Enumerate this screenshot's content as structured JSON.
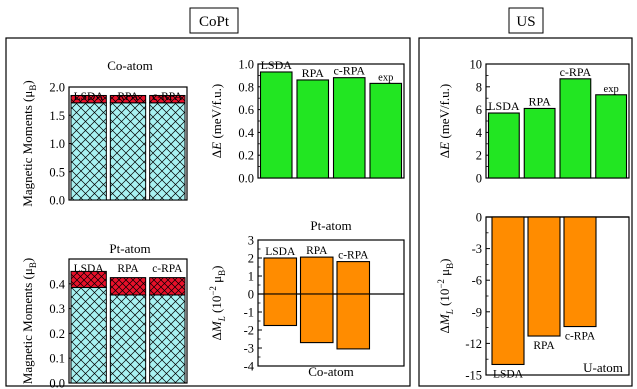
{
  "colors": {
    "cyan": "#a8f2f2",
    "red": "#e8102a",
    "green": "#22e622",
    "orange": "#ff8c00"
  },
  "panels": {
    "copt_label": "CoPt",
    "us_label": "US"
  },
  "chart_data": [
    {
      "id": "copt_mm_co",
      "type": "bar",
      "stacked": true,
      "title": "Co-atom",
      "ylabel": "Magnetic Moments (μB)",
      "ylim": [
        0,
        2.0
      ],
      "yticks": [
        "0.0",
        "0.5",
        "1.0",
        "1.5",
        "2.0"
      ],
      "categories": [
        "LSDA",
        "RPA",
        "c-RPA"
      ],
      "series": [
        {
          "values": [
            1.72,
            1.72,
            1.72
          ]
        },
        {
          "values": [
            0.13,
            0.13,
            0.13
          ]
        }
      ]
    },
    {
      "id": "copt_mm_pt",
      "type": "bar",
      "stacked": true,
      "title": "Pt-atom",
      "ylabel": "Magnetic Moments (μB)",
      "ylim": [
        0,
        0.5
      ],
      "yticks": [
        "0.0",
        "0.1",
        "0.2",
        "0.3",
        "0.4"
      ],
      "categories": [
        "LSDA",
        "RPA",
        "c-RPA"
      ],
      "series": [
        {
          "values": [
            0.385,
            0.355,
            0.355
          ]
        },
        {
          "values": [
            0.065,
            0.07,
            0.07
          ]
        }
      ]
    },
    {
      "id": "copt_de",
      "type": "bar",
      "title": "",
      "ylabel": "ΔE (meV/f.u.)",
      "ylim": [
        0,
        1.0
      ],
      "yticks": [
        "0.0",
        "0.2",
        "0.4",
        "0.6",
        "0.8",
        "1.0"
      ],
      "categories": [
        "LSDA",
        "RPA",
        "c-RPA",
        "exp"
      ],
      "values": [
        0.93,
        0.86,
        0.88,
        0.83
      ]
    },
    {
      "id": "copt_dml",
      "type": "bar",
      "title": "",
      "ylabel": "ΔML (10−2 μB)",
      "ylim": [
        -4,
        3
      ],
      "yticks": [
        "3",
        "2",
        "1",
        "0",
        "-1",
        "-2",
        "-3",
        "-4"
      ],
      "categories": [
        "LSDA",
        "RPA",
        "c-RPA"
      ],
      "series": [
        {
          "name": "Pt-atom",
          "values": [
            2.0,
            2.05,
            1.8
          ]
        },
        {
          "name": "Co-atom",
          "values": [
            -1.75,
            -2.7,
            -3.05
          ]
        }
      ]
    },
    {
      "id": "us_de",
      "type": "bar",
      "title": "",
      "ylabel": "ΔE (meV/f.u.)",
      "ylim": [
        0,
        10
      ],
      "yticks": [
        "0",
        "2",
        "4",
        "6",
        "8",
        "10"
      ],
      "categories": [
        "LSDA",
        "RPA",
        "c-RPA",
        "exp"
      ],
      "values": [
        5.7,
        6.1,
        8.7,
        7.3
      ]
    },
    {
      "id": "us_dml",
      "type": "bar",
      "title": "U-atom",
      "ylabel": "ΔML (10−2 μB)",
      "ylim": [
        -15,
        0
      ],
      "yticks": [
        "0",
        "-3",
        "-6",
        "-9",
        "-12",
        "-15"
      ],
      "categories": [
        "LSDA",
        "RPA",
        "c-RPA"
      ],
      "values": [
        -14.0,
        -11.3,
        -10.4
      ]
    }
  ]
}
